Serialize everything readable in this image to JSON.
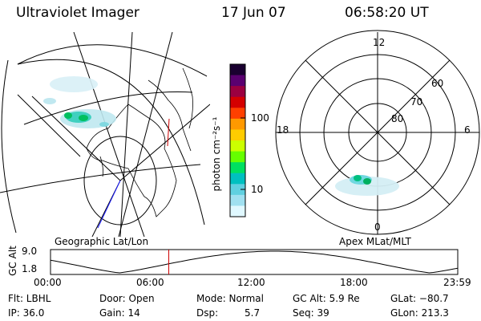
{
  "header": {
    "instrument": "Ultraviolet Imager",
    "date": "17 Jun 07",
    "time": "06:58:20 UT"
  },
  "left_panel": {
    "label": "Geographic Lat/Lon"
  },
  "right_panel": {
    "label": "Apex MLat/MLT",
    "mlt_labels": [
      "12",
      "18",
      "6",
      "0"
    ],
    "lat_labels": [
      "60",
      "70",
      "80"
    ]
  },
  "colorbar": {
    "unit_label": "photon cm⁻²s⁻¹",
    "ticks": [
      "100",
      "10"
    ],
    "colors": [
      "#1a0030",
      "#5a0070",
      "#9b0040",
      "#d40000",
      "#ff4000",
      "#ff9900",
      "#ffcc00",
      "#ccff00",
      "#66ff00",
      "#00e060",
      "#00c0c0",
      "#60d0e0",
      "#a0e0f0",
      "#e0f8ff"
    ]
  },
  "altitude_plot": {
    "ylabel": "GC Alt",
    "ymax_label": "9.0",
    "ymin_label": "1.8",
    "x_ticks": [
      "00:00",
      "06:00",
      "12:00",
      "18:00",
      "23:59"
    ],
    "current_time_hours": 6.97
  },
  "info": {
    "filter": "Flt: LBHL",
    "ip": "IP: 36.0",
    "door": "Door: Open",
    "gain": "Gain: 14",
    "mode": "Mode: Normal",
    "dsp_label": "Dsp:",
    "dsp_value": "5.7",
    "gc_alt": "GC Alt: 5.9 Re",
    "seq": "Seq: 39",
    "glat": "GLat: −80.7",
    "glon": "GLon: 213.3"
  }
}
